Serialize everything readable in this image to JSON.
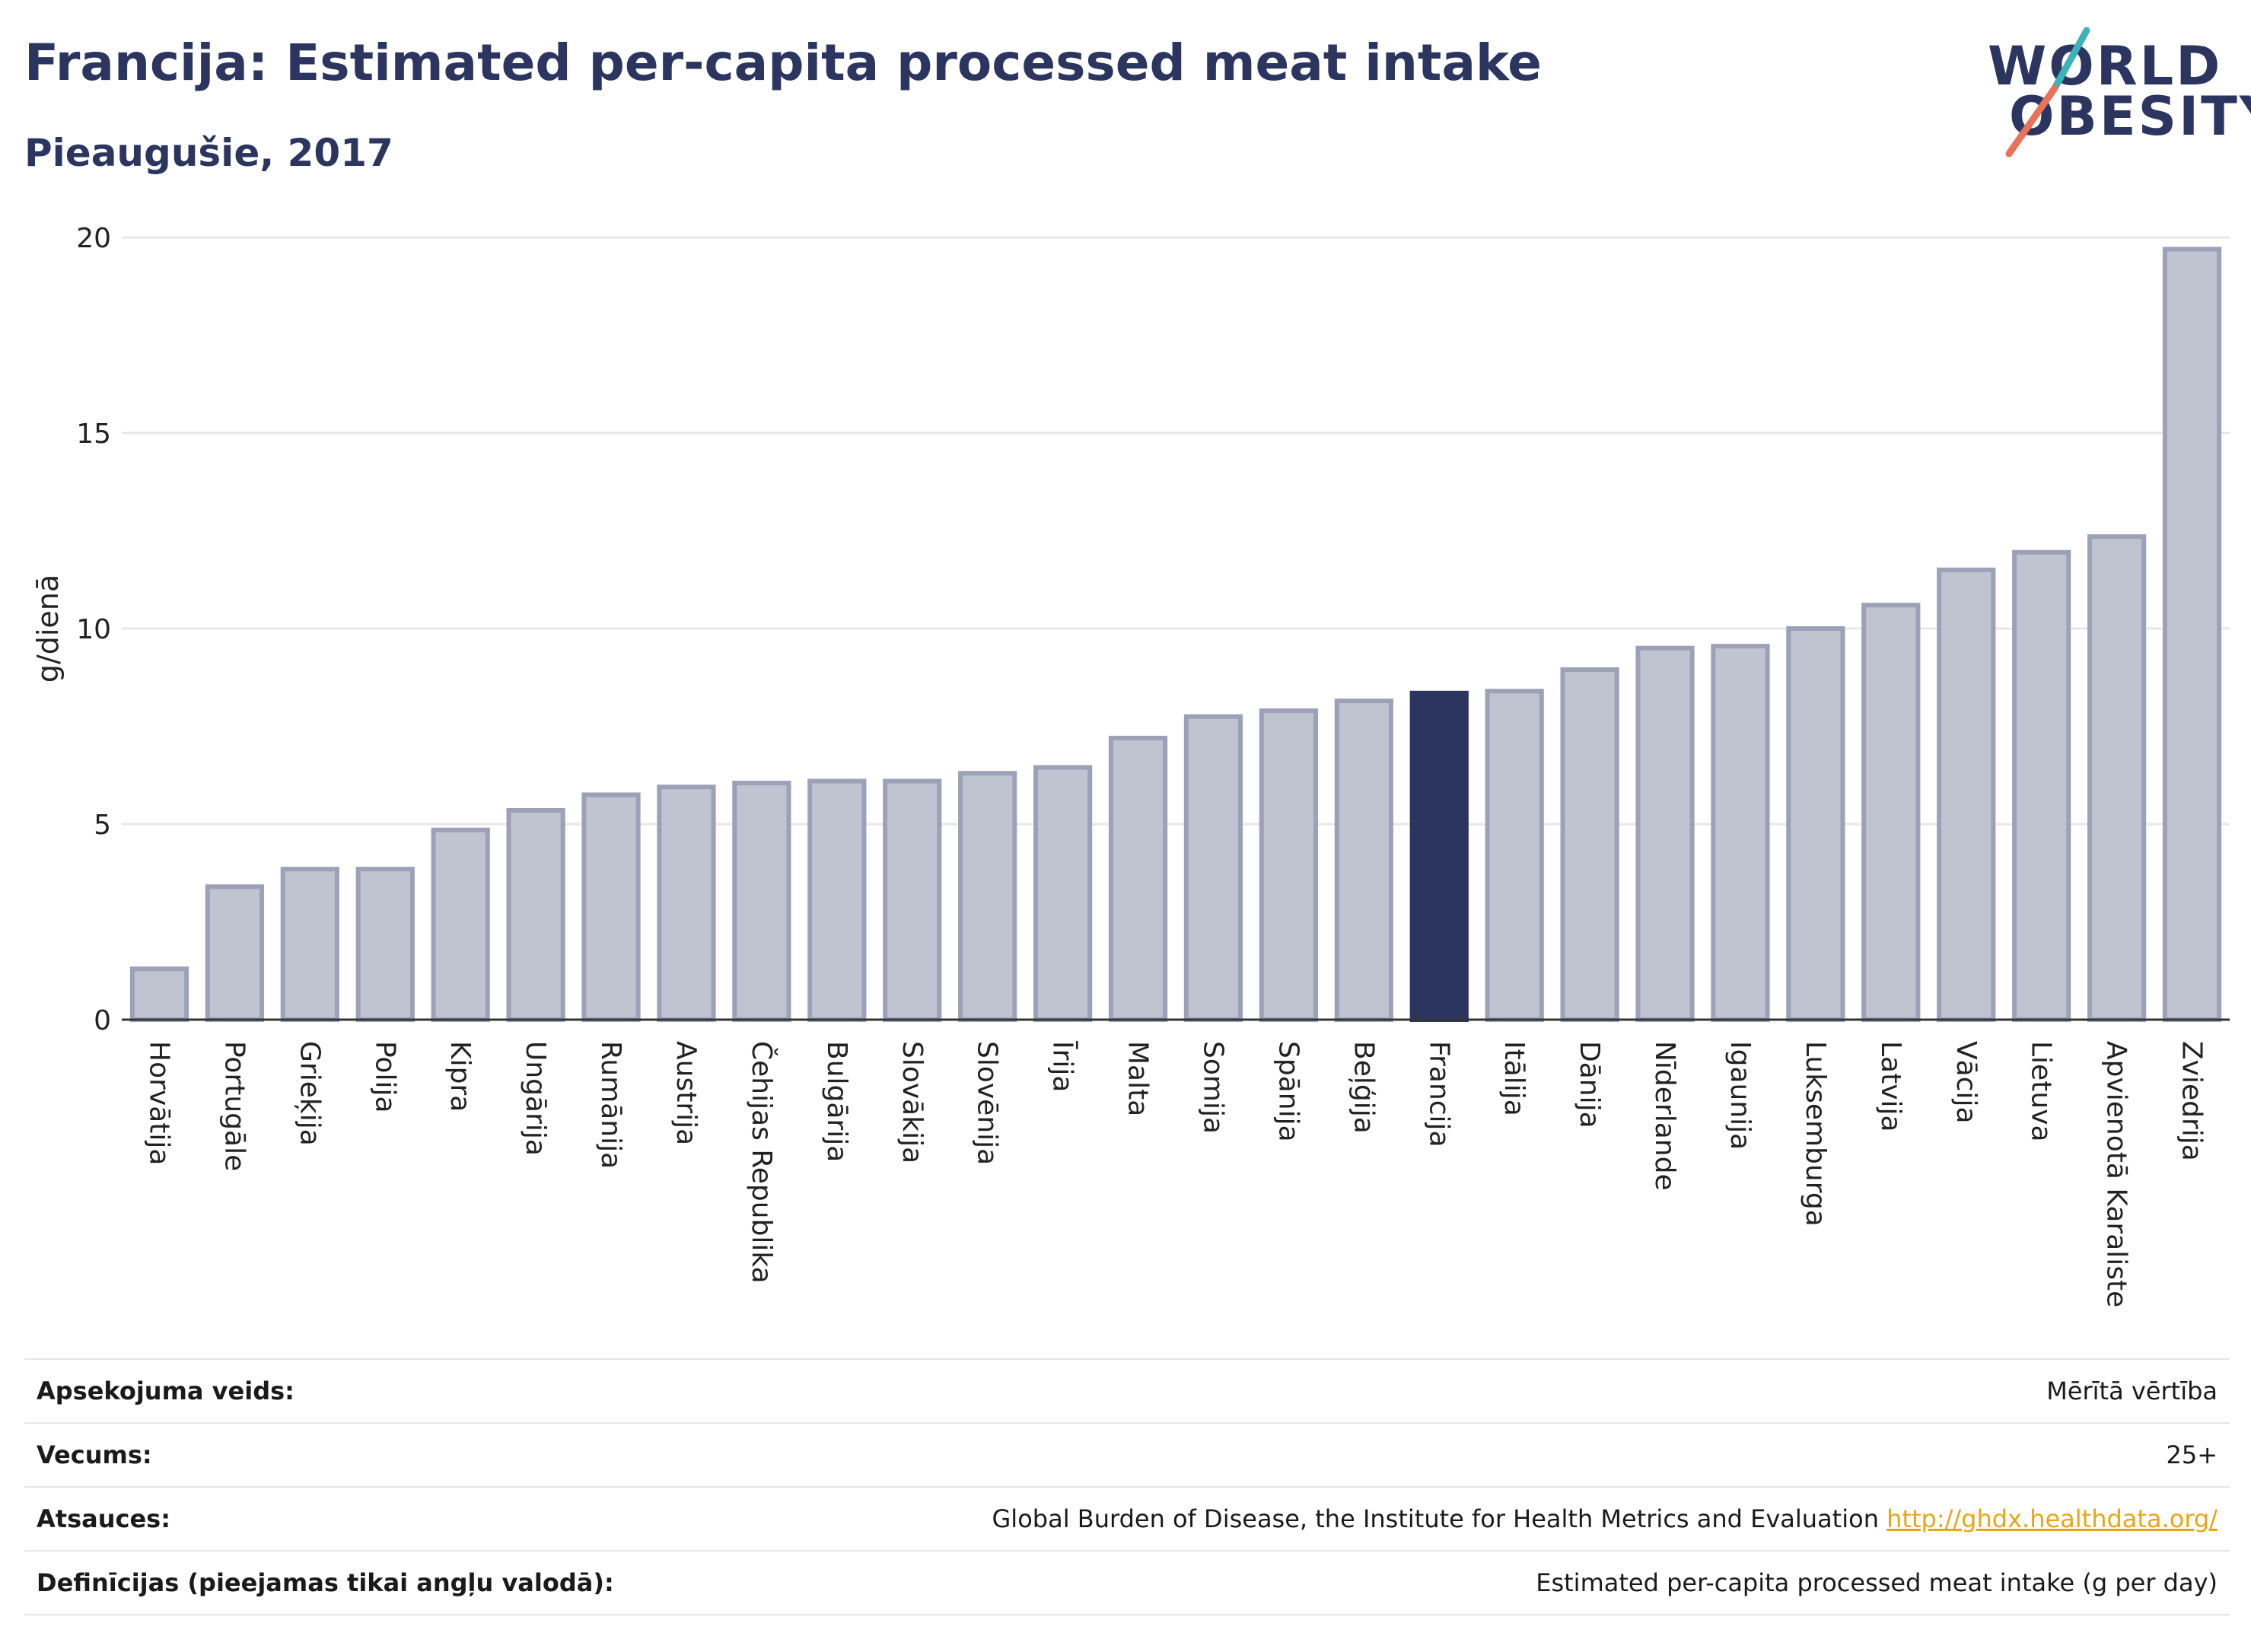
{
  "header": {
    "title": "Francija: Estimated per-capita processed meat intake",
    "subtitle": "Pieaugušie, 2017",
    "logo_line1": "WORLD",
    "logo_line2": "OBESITY"
  },
  "chart_data": {
    "type": "bar",
    "xlabel": "",
    "ylabel": "g/dienā",
    "ylim": [
      0,
      20
    ],
    "yticks": [
      0,
      5,
      10,
      15,
      20
    ],
    "grid": true,
    "highlight": "Francija",
    "colors": {
      "bar": "#c0c3d0",
      "bar_border": "#9ca1b8",
      "highlight": "#2b3560",
      "grid": "#e8e8e8",
      "axis": "#333333"
    },
    "categories": [
      "Horvātija",
      "Portugāle",
      "Grieķija",
      "Polija",
      "Kipra",
      "Ungārija",
      "Rumānija",
      "Austrija",
      "Čehijas Republika",
      "Bulgārija",
      "Slovākija",
      "Slovēnija",
      "Īrija",
      "Malta",
      "Somija",
      "Spānija",
      "Beļģija",
      "Francija",
      "Itālija",
      "Dānija",
      "Nīderlande",
      "Igaunija",
      "Luksemburga",
      "Latvija",
      "Vācija",
      "Lietuva",
      "Apvienotā Karaliste",
      "Zviedrija"
    ],
    "values": [
      1.3,
      3.4,
      3.85,
      3.85,
      4.85,
      5.35,
      5.75,
      5.95,
      6.05,
      6.1,
      6.1,
      6.3,
      6.45,
      7.2,
      7.75,
      7.9,
      8.15,
      8.35,
      8.4,
      8.95,
      9.5,
      9.55,
      10.0,
      10.6,
      11.5,
      11.95,
      12.35,
      19.7
    ]
  },
  "meta": [
    {
      "label": "Apsekojuma veids:",
      "value": "Mērītā vērtība"
    },
    {
      "label": "Vecums:",
      "value": "25+"
    },
    {
      "label": "Atsauces:",
      "value": "Global Burden of Disease, the Institute for Health Metrics and Evaluation",
      "link": "http://ghdx.healthdata.org/"
    },
    {
      "label": "Definīcijas (pieejamas tikai angļu valodā):",
      "value": "Estimated per-capita processed meat intake (g per day)"
    }
  ]
}
